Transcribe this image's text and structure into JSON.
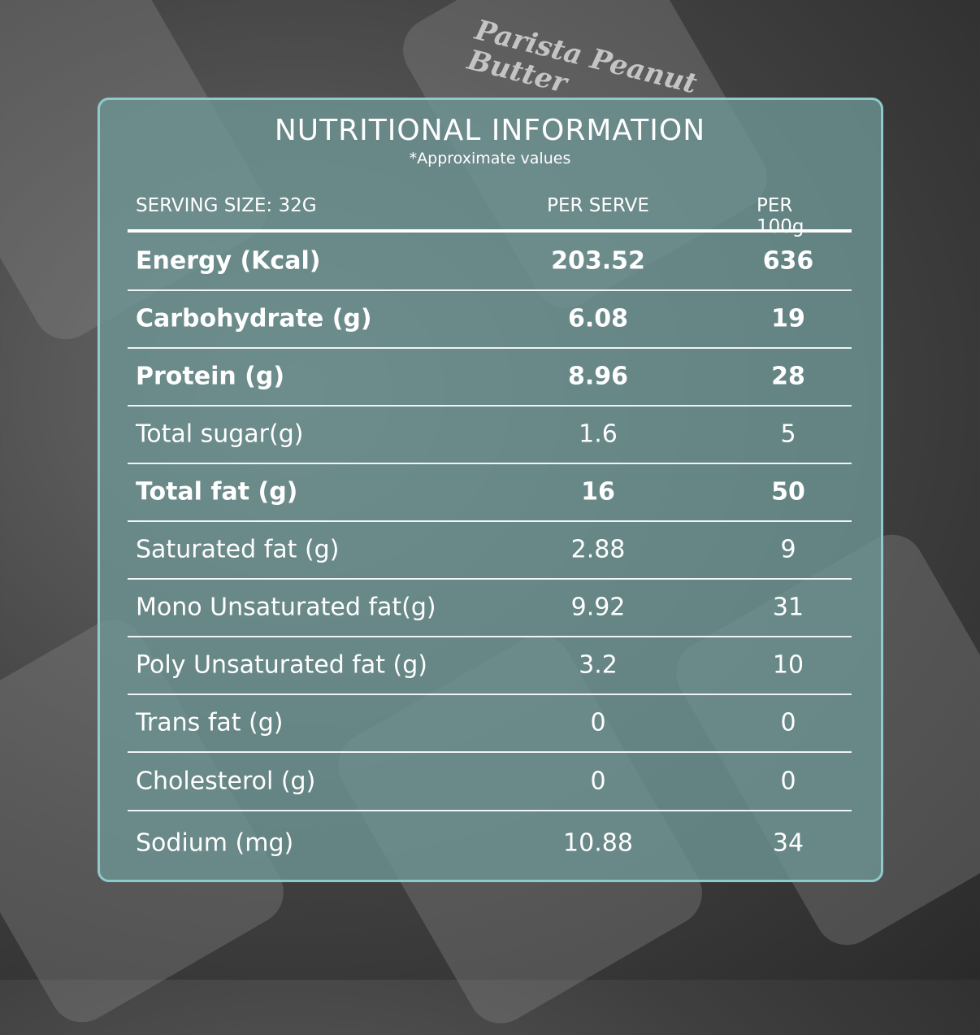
{
  "title": "NUTRITIONAL INFORMATION",
  "subtitle": "*Approximate values",
  "header": {
    "serving": "SERVING SIZE: 32G",
    "per_serve": "PER SERVE",
    "per_100g": "PER 100g"
  },
  "rows": [
    {
      "label": "Energy (Kcal)",
      "per_serve": "203.52",
      "per_100g": "636",
      "bold": true
    },
    {
      "label": "Carbohydrate (g)",
      "per_serve": "6.08",
      "per_100g": "19",
      "bold": true
    },
    {
      "label": "Protein (g)",
      "per_serve": "8.96",
      "per_100g": "28",
      "bold": true
    },
    {
      "label": "Total sugar(g)",
      "per_serve": "1.6",
      "per_100g": "5",
      "bold": false
    },
    {
      "label": "Total fat (g)",
      "per_serve": "16",
      "per_100g": "50",
      "bold": true
    },
    {
      "label": "Saturated fat (g)",
      "per_serve": "2.88",
      "per_100g": "9",
      "bold": false
    },
    {
      "label": "Mono Unsaturated fat(g)",
      "per_serve": "9.92",
      "per_100g": "31",
      "bold": false
    },
    {
      "label": "Poly Unsaturated fat (g)",
      "per_serve": "3.2",
      "per_100g": "10",
      "bold": false
    },
    {
      "label": "Trans fat (g)",
      "per_serve": "0",
      "per_100g": "0",
      "bold": false
    },
    {
      "label": "Cholesterol (g)",
      "per_serve": "0",
      "per_100g": "0",
      "bold": false
    },
    {
      "label": "Sodium (mg)",
      "per_serve": "10.88",
      "per_100g": "34",
      "bold": false
    }
  ],
  "background_brand": "Parista Peanut Butter",
  "colors": {
    "panel": "#6e9696",
    "border": "#8fcaca",
    "text": "#ffffff"
  }
}
